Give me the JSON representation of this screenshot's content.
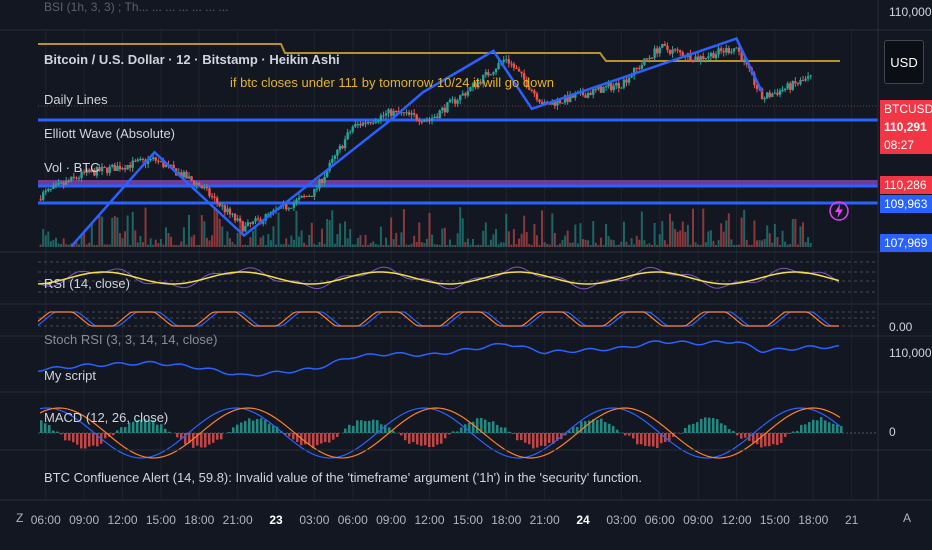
{
  "header": {
    "symbol_line": "Bitcoin / U.S. Dollar · 12 · Bitstamp · Heikin Ashi",
    "top_partial": "BSI (1h, 3, 3) ; Th... ... ... ... ... ... ...",
    "currency_button": "USD"
  },
  "indicators": {
    "daily_lines": "Daily Lines",
    "elliott": "Elliott Wave (Absolute)",
    "volume": "Vol · BTC",
    "rsi": "RSI (14, close)",
    "stoch_rsi": "Stoch RSI (3, 3, 14, 14, close)",
    "my_script": "My script",
    "macd": "MACD (12, 26, close)",
    "error": "BTC Confluence Alert (14, 59.8): Invalid value of the 'timeframe' argument ('1h') in the 'security' function."
  },
  "annotation": {
    "text": "if btc closes under 111 by tomorrow 10/24 it will go down"
  },
  "price_axis": {
    "top_label": "110,000",
    "badges": [
      {
        "label": "BTCUSD",
        "color": "#f23645"
      },
      {
        "label": "110,291",
        "color": "#f23645"
      },
      {
        "label": "08:27",
        "color": "#f23645"
      },
      {
        "label": "110,286",
        "color": "#f23645"
      },
      {
        "label": "109,963",
        "color": "#2962ff"
      },
      {
        "label": "107,969",
        "color": "#2962ff"
      }
    ],
    "stoch_label": "0.00",
    "script_label": "110,000",
    "macd_label": "0"
  },
  "time_axis": {
    "left_button": "Z",
    "right_button": "A",
    "labels": [
      {
        "text": "06:00",
        "bold": false
      },
      {
        "text": "09:00",
        "bold": false
      },
      {
        "text": "12:00",
        "bold": false
      },
      {
        "text": "15:00",
        "bold": false
      },
      {
        "text": "18:00",
        "bold": false
      },
      {
        "text": "21:00",
        "bold": false
      },
      {
        "text": "23",
        "bold": true
      },
      {
        "text": "03:00",
        "bold": false
      },
      {
        "text": "06:00",
        "bold": false
      },
      {
        "text": "09:00",
        "bold": false
      },
      {
        "text": "12:00",
        "bold": false
      },
      {
        "text": "15:00",
        "bold": false
      },
      {
        "text": "18:00",
        "bold": false
      },
      {
        "text": "21:00",
        "bold": false
      },
      {
        "text": "24",
        "bold": true
      },
      {
        "text": "03:00",
        "bold": false
      },
      {
        "text": "06:00",
        "bold": false
      },
      {
        "text": "09:00",
        "bold": false
      },
      {
        "text": "12:00",
        "bold": false
      },
      {
        "text": "15:00",
        "bold": false
      },
      {
        "text": "18:00",
        "bold": false
      },
      {
        "text": "21",
        "bold": false
      }
    ]
  },
  "colors": {
    "background": "#131722",
    "up": "#26a69a",
    "down": "#ef5350",
    "elliott": "#2962ff",
    "gold_line": "#b8912a",
    "rsi_line": "#f5e042",
    "rsi_purple": "#7e57c2",
    "stoch_orange": "#ff7f27",
    "stoch_blue": "#2962ff"
  },
  "chart_data": {
    "type": "candlestick",
    "title": "Bitcoin / U.S. Dollar · 12 · Bitstamp · Heikin Ashi",
    "x_start": "22 05:00",
    "x_end": "24 18:00",
    "ylim": [
      107900,
      110800
    ],
    "horizontal_levels": [
      110286,
      109963
    ],
    "elliott_wave": [
      {
        "t": "22 08:00",
        "p": 107950
      },
      {
        "t": "22 14:30",
        "p": 109250
      },
      {
        "t": "22 21:30",
        "p": 108100
      },
      {
        "t": "23 09:00",
        "p": 109700
      },
      {
        "t": "23 11:30",
        "p": 110080
      },
      {
        "t": "23 17:00",
        "p": 110650
      },
      {
        "t": "23 20:00",
        "p": 109850
      },
      {
        "t": "24 12:00",
        "p": 110820
      },
      {
        "t": "24 14:00",
        "p": 110080
      }
    ],
    "anchor_points": [
      {
        "t": "22 05:00",
        "p": 108600
      },
      {
        "t": "22 09:00",
        "p": 108950
      },
      {
        "t": "22 14:30",
        "p": 109150
      },
      {
        "t": "22 18:00",
        "p": 108800
      },
      {
        "t": "22 21:30",
        "p": 108200
      },
      {
        "t": "23 03:00",
        "p": 108700
      },
      {
        "t": "23 06:00",
        "p": 109600
      },
      {
        "t": "23 09:00",
        "p": 109800
      },
      {
        "t": "23 12:00",
        "p": 109700
      },
      {
        "t": "23 15:00",
        "p": 110100
      },
      {
        "t": "23 18:00",
        "p": 110550
      },
      {
        "t": "23 21:00",
        "p": 109900
      },
      {
        "t": "24 03:00",
        "p": 110200
      },
      {
        "t": "24 06:00",
        "p": 110700
      },
      {
        "t": "24 09:00",
        "p": 110550
      },
      {
        "t": "24 12:00",
        "p": 110700
      },
      {
        "t": "24 14:00",
        "p": 110000
      },
      {
        "t": "24 18:00",
        "p": 110290
      }
    ]
  }
}
